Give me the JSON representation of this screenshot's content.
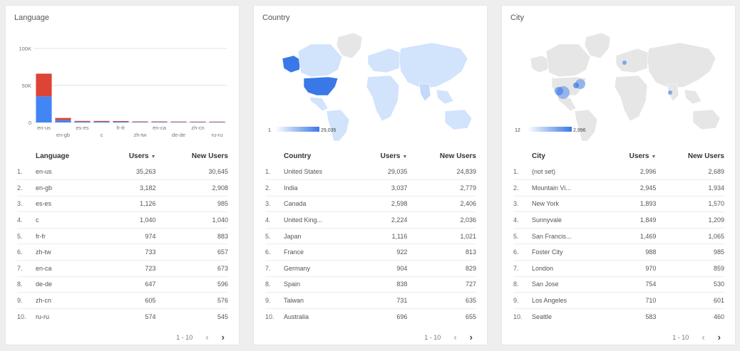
{
  "cards": [
    {
      "title": "Language",
      "columns": [
        "Language",
        "Users",
        "New Users"
      ],
      "sort_icon": "sort-desc-icon",
      "rows": [
        [
          "1.",
          "en-us",
          "35,263",
          "30,645"
        ],
        [
          "2.",
          "en-gb",
          "3,182",
          "2,908"
        ],
        [
          "3.",
          "es-es",
          "1,126",
          "985"
        ],
        [
          "4.",
          "c",
          "1,040",
          "1,040"
        ],
        [
          "5.",
          "fr-fr",
          "974",
          "883"
        ],
        [
          "6.",
          "zh-tw",
          "733",
          "657"
        ],
        [
          "7.",
          "en-ca",
          "723",
          "673"
        ],
        [
          "8.",
          "de-de",
          "647",
          "596"
        ],
        [
          "9.",
          "zh-cn",
          "605",
          "576"
        ],
        [
          "10.",
          "ru-ru",
          "574",
          "545"
        ]
      ],
      "pager": "1 - 10"
    },
    {
      "title": "Country",
      "columns": [
        "Country",
        "Users",
        "New Users"
      ],
      "sort_icon": "sort-desc-icon",
      "rows": [
        [
          "1.",
          "United States",
          "29,035",
          "24,839"
        ],
        [
          "2.",
          "India",
          "3,037",
          "2,779"
        ],
        [
          "3.",
          "Canada",
          "2,598",
          "2,406"
        ],
        [
          "4.",
          "United King...",
          "2,224",
          "2,036"
        ],
        [
          "5.",
          "Japan",
          "1,116",
          "1,021"
        ],
        [
          "6.",
          "France",
          "922",
          "813"
        ],
        [
          "7.",
          "Germany",
          "904",
          "829"
        ],
        [
          "8.",
          "Spain",
          "838",
          "727"
        ],
        [
          "9.",
          "Taiwan",
          "731",
          "635"
        ],
        [
          "10.",
          "Australia",
          "696",
          "655"
        ]
      ],
      "pager": "1 - 10",
      "map_legend": {
        "min": "1",
        "max": "29,035"
      }
    },
    {
      "title": "City",
      "columns": [
        "City",
        "Users",
        "New Users"
      ],
      "sort_icon": "sort-desc-icon",
      "rows": [
        [
          "1.",
          "(not set)",
          "2,996",
          "2,689"
        ],
        [
          "2.",
          "Mountain Vi...",
          "2,945",
          "1,934"
        ],
        [
          "3.",
          "New York",
          "1,893",
          "1,570"
        ],
        [
          "4.",
          "Sunnyvale",
          "1,849",
          "1,209"
        ],
        [
          "5.",
          "San Francis...",
          "1,469",
          "1,065"
        ],
        [
          "6.",
          "Foster City",
          "988",
          "985"
        ],
        [
          "7.",
          "London",
          "970",
          "859"
        ],
        [
          "8.",
          "San Jose",
          "754",
          "530"
        ],
        [
          "9.",
          "Los Angeles",
          "710",
          "601"
        ],
        [
          "10.",
          "Seattle",
          "583",
          "460"
        ]
      ],
      "pager": "1 - 10",
      "map_legend": {
        "min": "12",
        "max": "2,996"
      }
    }
  ],
  "chart_data": {
    "type": "bar",
    "stacked": true,
    "categories": [
      "en-us",
      "en-gb",
      "es-es",
      "c",
      "fr-fr",
      "zh-tw",
      "en-ca",
      "de-de",
      "zh-cn",
      "ru-ru"
    ],
    "series": [
      {
        "values": [
          35263,
          3182,
          1126,
          1040,
          974,
          733,
          723,
          647,
          605,
          574
        ],
        "color": "#4285f4"
      },
      {
        "values": [
          30645,
          2908,
          985,
          1040,
          883,
          657,
          673,
          596,
          576,
          545
        ],
        "color": "#db4437"
      }
    ],
    "yticks": [
      "0",
      "50K",
      "100K"
    ],
    "ylim": [
      0,
      100000
    ],
    "grid": true
  },
  "colors": {
    "map_dark": "#3b78e7",
    "map_light": "#d2e3fc",
    "map_none": "#e6e6e6"
  }
}
